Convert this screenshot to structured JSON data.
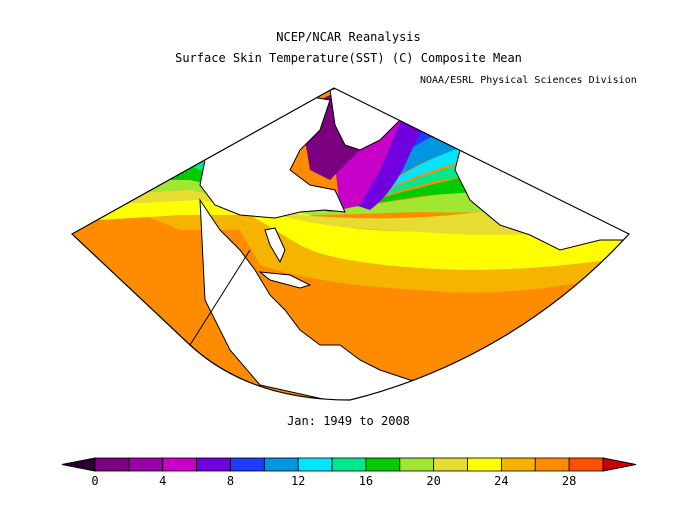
{
  "header": {
    "title": "NCEP/NCAR Reanalysis",
    "subtitle": "Surface Skin Temperature(SST) (C) Composite Mean",
    "credit": "NOAA/ESRL Physical Sciences Division"
  },
  "period": "Jan: 1949 to 2008",
  "colorbar": {
    "min": 0,
    "max": 30,
    "step": 2,
    "tick_labels": [
      "0",
      "4",
      "8",
      "12",
      "16",
      "20",
      "24",
      "28"
    ],
    "colors": [
      "#7a0080",
      "#9a00a8",
      "#c800c8",
      "#7000e0",
      "#1e3cff",
      "#0096e0",
      "#00e6ff",
      "#00e88c",
      "#00cc00",
      "#a0e632",
      "#e6dc32",
      "#ffff00",
      "#f5b400",
      "#ff8c00",
      "#ff5000"
    ],
    "under_color": "#2a0030",
    "over_color": "#cc0000"
  },
  "map_legend_colors": {
    "land": "#ffffff",
    "coast": "#000000"
  }
}
